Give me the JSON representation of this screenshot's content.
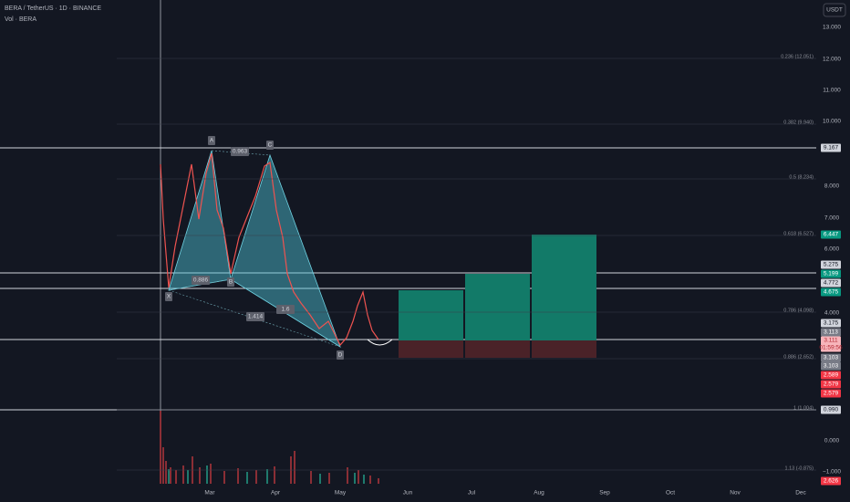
{
  "header": {
    "symbol_line": "BERA / TetherUS · 1D · BINANCE",
    "volume_label": "Vol · BERA",
    "currency_button": "USDT"
  },
  "price_axis": [
    "13.000",
    "12.000",
    "11.000",
    "10.000",
    "8.000",
    "7.000",
    "6.000",
    "4.000",
    "0.000",
    "−1.000"
  ],
  "price_tags": [
    "9.167",
    "6.447",
    "5.275",
    "5.199",
    "4.772",
    "4.675",
    "3.175",
    "3.113",
    "3.111",
    "01:59:56",
    "3.103",
    "3.103",
    "2.589",
    "2.579",
    "2.579",
    "0.990",
    "2.626"
  ],
  "time_axis": [
    "Mar",
    "Apr",
    "May",
    "Jun",
    "Jul",
    "Aug",
    "Sep",
    "Oct",
    "Nov",
    "Dec"
  ],
  "fib_levels": [
    "0.236 (12.051)",
    "0.382 (9.940)",
    "0.5 (8.234)",
    "0.618 (6.527)",
    "0.786 (4.098)",
    "0.886 (2.652)",
    "1 (1.004)",
    "1.13 (-0.875)"
  ],
  "pattern_points": [
    "X",
    "A",
    "B",
    "C",
    "D"
  ],
  "pattern_ratios": [
    "0.963",
    "0.886",
    "1.414",
    "1.6"
  ]
}
